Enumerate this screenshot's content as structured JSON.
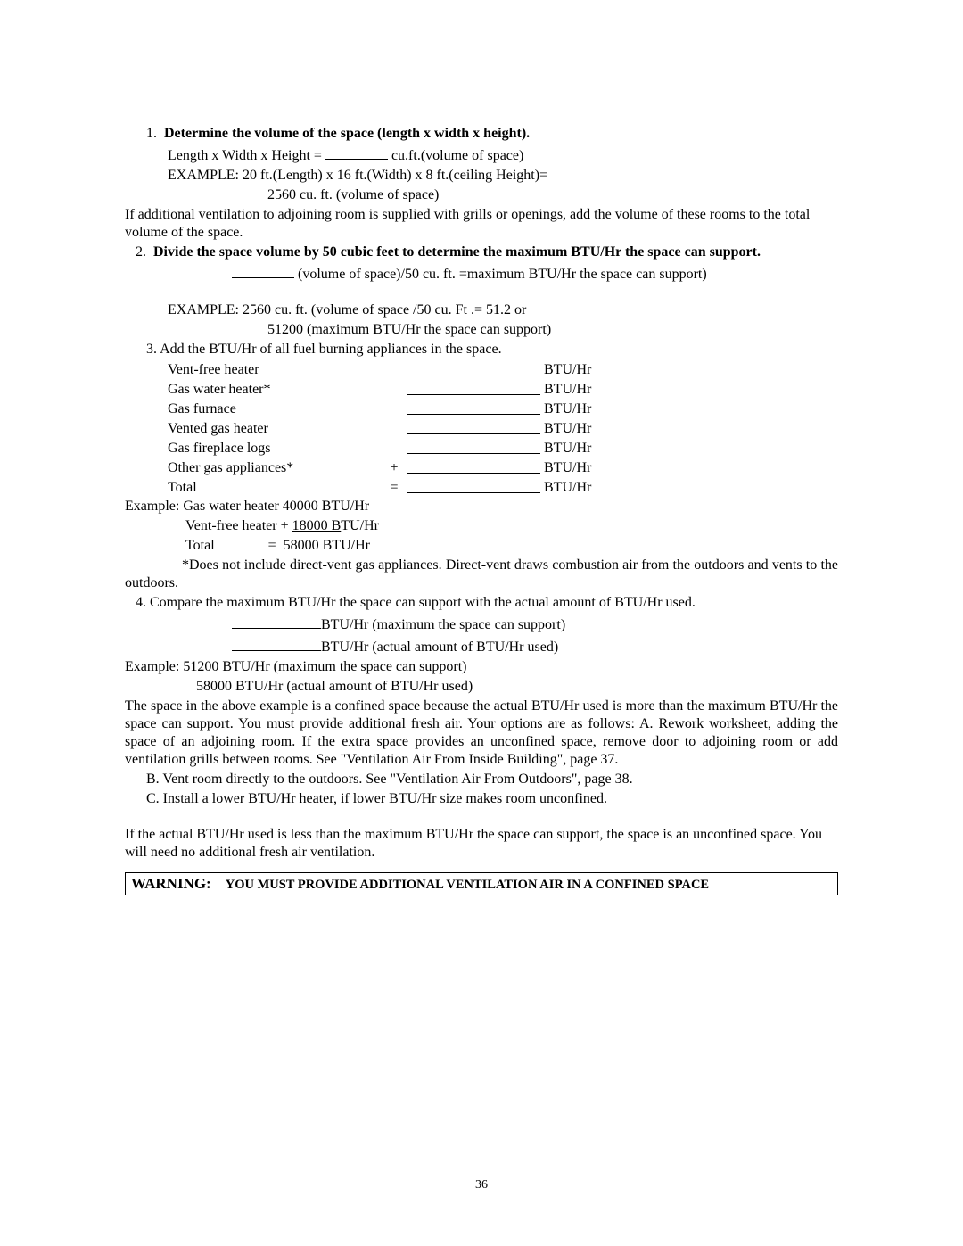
{
  "step1": {
    "num": "1.",
    "title": "Determine  the  volume  of the space  (length  x  width  x height).",
    "formula_left": "Length x Width x Height =",
    "formula_right": "cu.ft.(volume of space)",
    "example_label": "EXAMPLE: 20 ft.(Length) x 16 ft.(Width) x 8 ft.(ceiling Height)=",
    "example_result": "2560 cu. ft. (volume of space)",
    "note1": "If  additional  ventilation to adjoining room  is  supplied  with grills  or openings, add the volume of these rooms to  the  total volume of the space."
  },
  "step2": {
    "num": "2.",
    "title": "Divide the space volume by 50 cubic feet to determine  the maximum BTU/Hr the space can support.",
    "formula_right": "(volume of space)/50 cu. ft. =maximum BTU/Hr the space can support)",
    "example_label": "EXAMPLE:   2560 cu. ft. (volume of space /50 cu. Ft .= 51.2   or",
    "example_result": "51200 (maximum BTU/Hr the space can support)"
  },
  "step3": {
    "heading": "3. Add the BTU/Hr of all fuel burning appliances in the space.",
    "rows": [
      {
        "label": "Vent-free heater",
        "sym": "",
        "unit": "BTU/Hr"
      },
      {
        "label": "Gas water heater*",
        "sym": "",
        "unit": "BTU/Hr"
      },
      {
        "label": "Gas furnace",
        "sym": "",
        "unit": "BTU/Hr"
      },
      {
        "label": "Vented gas heater",
        "sym": "",
        "unit": "BTU/Hr"
      },
      {
        "label": "Gas fireplace logs",
        "sym": "",
        "unit": "BTU/Hr"
      },
      {
        "label": "Other gas appliances*",
        "sym": "+",
        "unit": "BTU/Hr"
      },
      {
        "label": "Total",
        "sym": "=",
        "unit": "BTU/Hr"
      }
    ],
    "example_l1": "Example: Gas water heater   40000 BTU/Hr",
    "example_l2a": "Vent-free heater + ",
    "example_l2b": "18000 B",
    "example_l2c": "TU/Hr",
    "example_l3": "Total               =  58000 BTU/Hr",
    "footnote": "*Does  not  include  direct-vent  gas  appliances.   Direct-vent  draws  combustion air from  the  outdoors and vents to the outdoors."
  },
  "step4": {
    "heading": "4.  Compare the maximum BTU/Hr the space can support with  the actual amount of BTU/Hr used.",
    "blank1_right": "BTU/Hr (maximum the space can support)",
    "blank2_right": "BTU/Hr (actual amount of BTU/Hr used)",
    "ex_l1": "Example:    51200  BTU/Hr (maximum the space can support)",
    "ex_l2": "58000  BTU/Hr (actual amount of BTU/Hr used)",
    "para": "The  space in the above example is a confined space  because  the actual BTU/Hr used is more than  the  maximum  BTU/Hr  the  space  can  support.  You  must  provide  additional  fresh air.   Your   options  are as follows:   A.   Rework worksheet, adding the space of an adjoining  room.  If the extra space provides an unconfined space, remove door to adjoining room or add ventilation grills between rooms.  See \"Ventilation Air From Inside Building\", page 37.",
    "optionB": "B.  Vent room directly to the outdoors.  See \"Ventilation  Air From Outdoors\", page 38.",
    "optionC": "C.  Install a lower BTU/Hr heater, if lower BTU/Hr size  makes room unconfined.",
    "closing": "If  the  actual BTU/Hr used is less than the maximum  BTU/Hr  the space  can support, the space is an unconfined space.   You  will need no additional fresh air ventilation."
  },
  "warning": {
    "label": "WARNING:",
    "text": "YOU MUST PROVIDE ADDITIONAL VENTILATION AIR  IN A CONFINED SPACE"
  },
  "page_number": "36"
}
